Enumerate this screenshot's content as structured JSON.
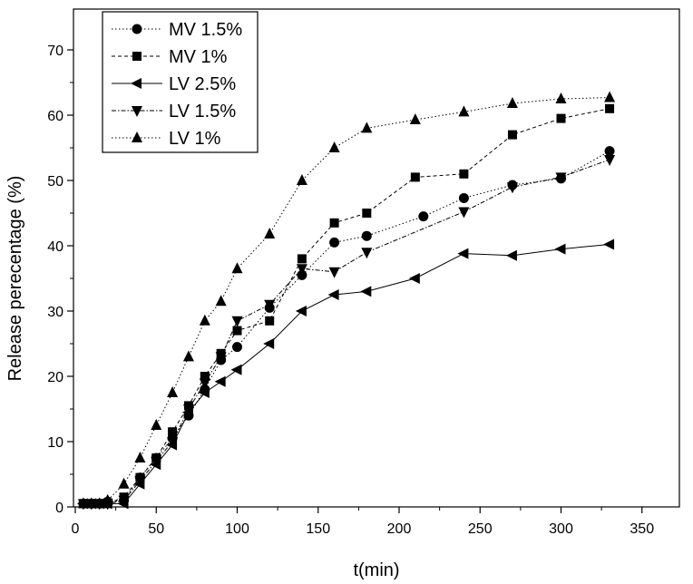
{
  "chart_data": {
    "type": "line",
    "title": "",
    "xlabel": "t(min)",
    "ylabel": "Release perecentage (%)",
    "xlim": [
      0,
      370
    ],
    "ylim": [
      0,
      76
    ],
    "xticks": [
      0,
      50,
      100,
      150,
      200,
      250,
      300,
      350
    ],
    "yticks": [
      0,
      10,
      20,
      30,
      40,
      50,
      60,
      70
    ],
    "grid": false,
    "legend_position": "top-left",
    "series": [
      {
        "name": "MV 1.5%",
        "marker": "circle",
        "line_style": "dotted",
        "x": [
          5,
          10,
          15,
          20,
          30,
          40,
          50,
          60,
          70,
          80,
          90,
          100,
          120,
          140,
          160,
          180,
          215,
          240,
          270,
          300,
          330
        ],
        "y": [
          0.5,
          0.5,
          0.5,
          0.8,
          1,
          4.5,
          7.5,
          10.5,
          14,
          18,
          22.5,
          24.5,
          30.5,
          35.5,
          40.5,
          41.5,
          44.5,
          47.3,
          49.3,
          50.3,
          54.5
        ]
      },
      {
        "name": "MV 1%",
        "marker": "square",
        "line_style": "dashed",
        "x": [
          5,
          10,
          15,
          20,
          30,
          40,
          50,
          60,
          70,
          80,
          90,
          100,
          120,
          140,
          160,
          180,
          210,
          240,
          270,
          300,
          330
        ],
        "y": [
          0.5,
          0.5,
          0.5,
          0.5,
          1.5,
          4.5,
          7.5,
          11.5,
          15.5,
          20,
          23.5,
          27,
          28.5,
          38,
          43.5,
          45,
          50.5,
          51,
          57,
          59.5,
          61
        ]
      },
      {
        "name": "LV 2.5%",
        "marker": "triangle-left",
        "line_style": "solid",
        "x": [
          5,
          10,
          15,
          20,
          30,
          40,
          50,
          60,
          70,
          80,
          90,
          100,
          120,
          140,
          160,
          180,
          210,
          240,
          270,
          300,
          330
        ],
        "y": [
          0.5,
          0.5,
          0.5,
          0.5,
          0.5,
          3.5,
          6.5,
          9.5,
          14.5,
          17.5,
          19.2,
          21,
          25,
          30,
          32.5,
          33,
          35,
          38.8,
          38.5,
          39.5,
          40.2
        ]
      },
      {
        "name": "LV 1.5%",
        "marker": "triangle-down",
        "line_style": "dash-dot",
        "x": [
          5,
          10,
          15,
          20,
          30,
          40,
          50,
          60,
          70,
          80,
          90,
          100,
          120,
          140,
          160,
          180,
          240,
          270,
          300,
          330
        ],
        "y": [
          0.5,
          0.5,
          0.5,
          0.5,
          1,
          4,
          7,
          10,
          15,
          19,
          23,
          28.5,
          31,
          36.5,
          36,
          39,
          45.2,
          49,
          50.5,
          53.2
        ]
      },
      {
        "name": "LV 1%",
        "marker": "triangle-up",
        "line_style": "dotted",
        "x": [
          5,
          10,
          15,
          20,
          30,
          40,
          50,
          60,
          70,
          80,
          90,
          100,
          120,
          140,
          160,
          180,
          210,
          240,
          270,
          300,
          330
        ],
        "y": [
          0.5,
          0.5,
          0.5,
          1,
          3.5,
          7.5,
          12.5,
          17.5,
          23,
          28.5,
          31.5,
          36.5,
          41.8,
          50,
          55,
          58,
          59.3,
          60.5,
          61.8,
          62.5,
          62.7
        ]
      }
    ]
  }
}
